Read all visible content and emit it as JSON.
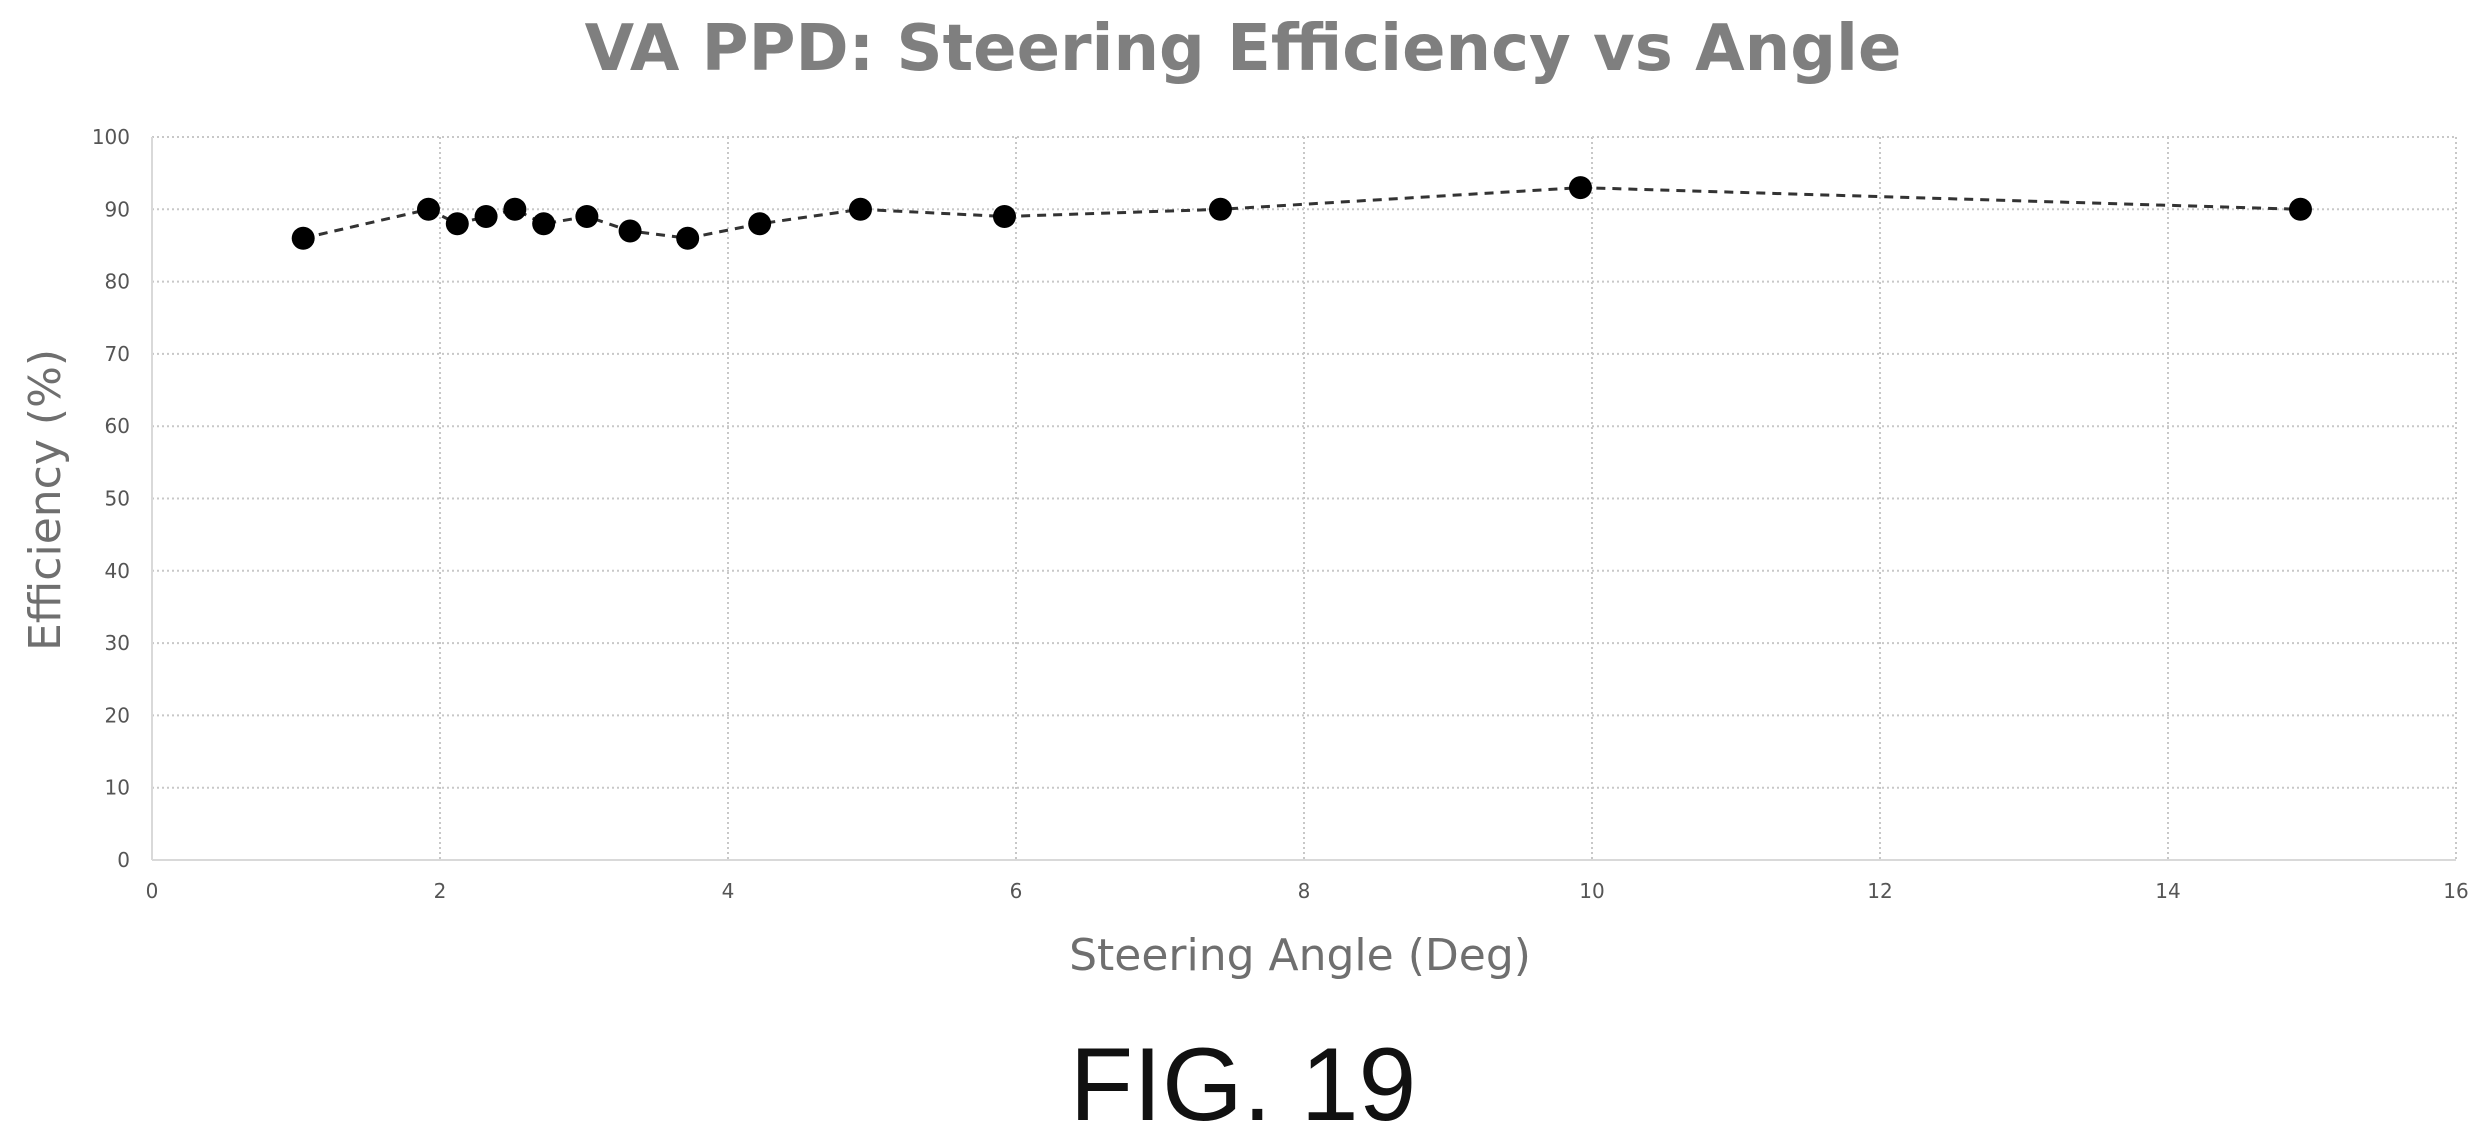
{
  "figure_label": "FIG. 19",
  "chart_data": {
    "type": "scatter",
    "title": "VA PPD: Steering Efficiency vs Angle",
    "xlabel": "Steering Angle (Deg)",
    "ylabel": "Efficiency (%)",
    "xlim": [
      0,
      16
    ],
    "ylim": [
      0,
      100
    ],
    "x_ticks": [
      "0",
      "2",
      "4",
      "6",
      "8",
      "10",
      "12",
      "14",
      "16"
    ],
    "y_ticks": [
      "0",
      "10",
      "20",
      "30",
      "40",
      "50",
      "60",
      "70",
      "80",
      "90",
      "100"
    ],
    "grid": true,
    "line_style": "dashed",
    "marker_color": "#000000",
    "series": [
      {
        "points": [
          {
            "x": 1.05,
            "y": 86
          },
          {
            "x": 1.92,
            "y": 90
          },
          {
            "x": 2.12,
            "y": 88
          },
          {
            "x": 2.32,
            "y": 89
          },
          {
            "x": 2.52,
            "y": 90
          },
          {
            "x": 2.72,
            "y": 88
          },
          {
            "x": 3.02,
            "y": 89
          },
          {
            "x": 3.32,
            "y": 87
          },
          {
            "x": 3.72,
            "y": 86
          },
          {
            "x": 4.22,
            "y": 88
          },
          {
            "x": 4.92,
            "y": 90
          },
          {
            "x": 5.92,
            "y": 89
          },
          {
            "x": 7.42,
            "y": 90
          },
          {
            "x": 9.92,
            "y": 93
          },
          {
            "x": 14.92,
            "y": 90
          }
        ]
      }
    ]
  }
}
